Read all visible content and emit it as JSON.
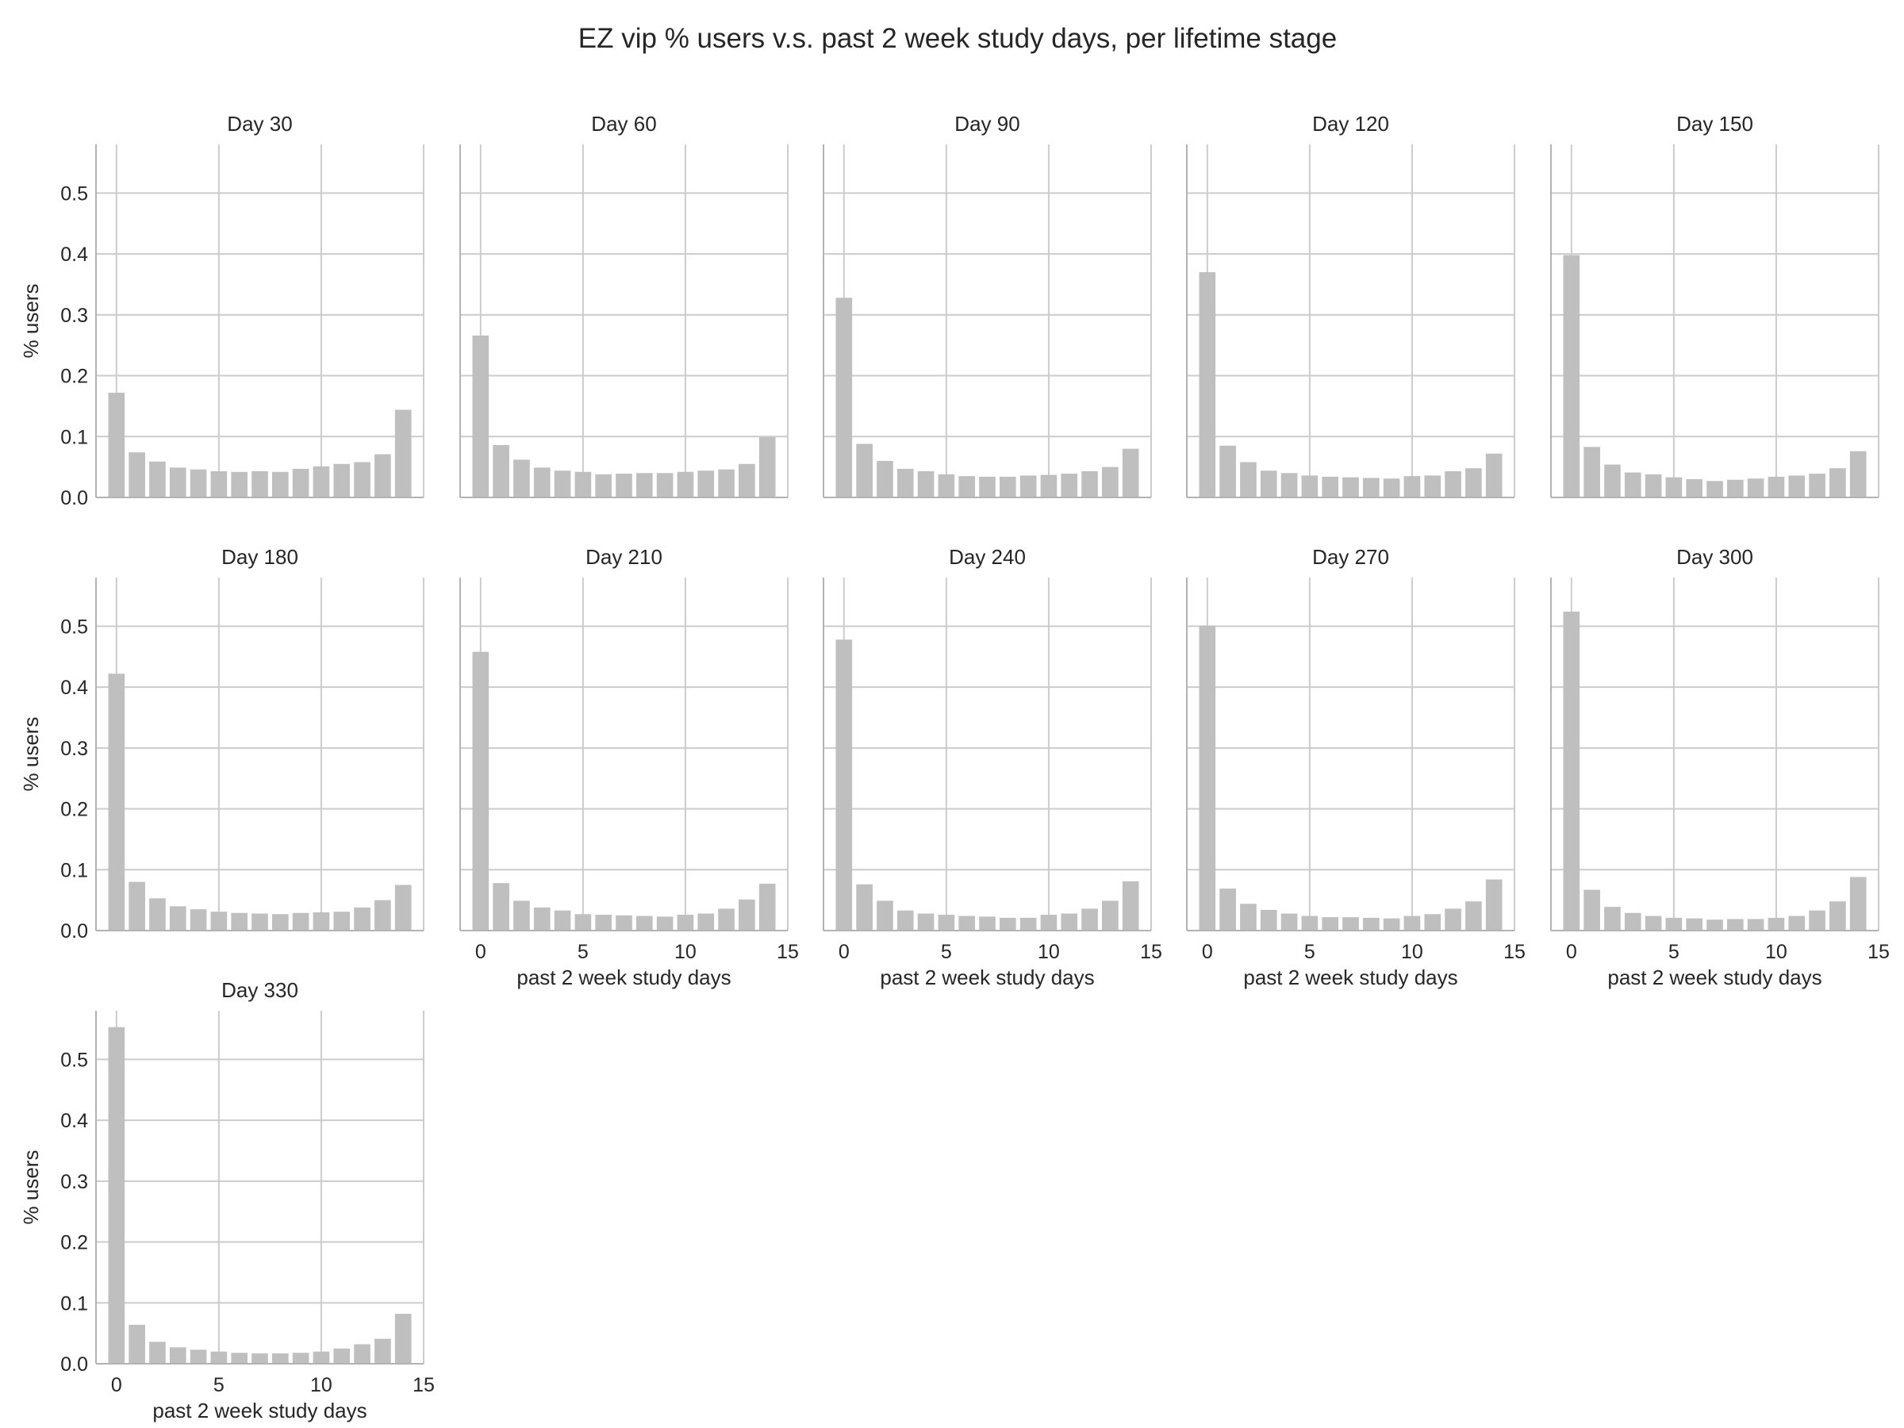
{
  "figure": {
    "suptitle": "EZ vip % users v.s. past 2 week study days, per lifetime stage",
    "bar_color": "#bfbfbf",
    "grid_color": "#cccccc",
    "spine_color": "#b3b3b3"
  },
  "chart_data": [
    {
      "type": "bar",
      "title": "Day 30",
      "xlabel": "",
      "ylabel": "% users",
      "xlim": [
        -1,
        15
      ],
      "ylim": [
        0,
        0.58
      ],
      "xticks": [],
      "yticks": [
        "0.0",
        "0.1",
        "0.2",
        "0.3",
        "0.4",
        "0.5"
      ],
      "x": [
        0,
        1,
        2,
        3,
        4,
        5,
        6,
        7,
        8,
        9,
        10,
        11,
        12,
        13,
        14
      ],
      "values": [
        0.172,
        0.074,
        0.059,
        0.049,
        0.046,
        0.043,
        0.042,
        0.043,
        0.042,
        0.047,
        0.051,
        0.055,
        0.058,
        0.071,
        0.144
      ]
    },
    {
      "type": "bar",
      "title": "Day 60",
      "xlabel": "",
      "ylabel": "",
      "xlim": [
        -1,
        15
      ],
      "ylim": [
        0,
        0.58
      ],
      "xticks": [],
      "yticks": [],
      "x": [
        0,
        1,
        2,
        3,
        4,
        5,
        6,
        7,
        8,
        9,
        10,
        11,
        12,
        13,
        14
      ],
      "values": [
        0.266,
        0.086,
        0.062,
        0.049,
        0.044,
        0.042,
        0.038,
        0.039,
        0.04,
        0.04,
        0.042,
        0.044,
        0.046,
        0.055,
        0.099
      ]
    },
    {
      "type": "bar",
      "title": "Day 90",
      "xlabel": "",
      "ylabel": "",
      "xlim": [
        -1,
        15
      ],
      "ylim": [
        0,
        0.58
      ],
      "xticks": [],
      "yticks": [],
      "x": [
        0,
        1,
        2,
        3,
        4,
        5,
        6,
        7,
        8,
        9,
        10,
        11,
        12,
        13,
        14
      ],
      "values": [
        0.328,
        0.088,
        0.06,
        0.047,
        0.043,
        0.038,
        0.035,
        0.034,
        0.034,
        0.036,
        0.037,
        0.039,
        0.043,
        0.05,
        0.08
      ]
    },
    {
      "type": "bar",
      "title": "Day 120",
      "xlabel": "",
      "ylabel": "",
      "xlim": [
        -1,
        15
      ],
      "ylim": [
        0,
        0.58
      ],
      "xticks": [],
      "yticks": [],
      "x": [
        0,
        1,
        2,
        3,
        4,
        5,
        6,
        7,
        8,
        9,
        10,
        11,
        12,
        13,
        14
      ],
      "values": [
        0.37,
        0.085,
        0.058,
        0.044,
        0.04,
        0.036,
        0.034,
        0.033,
        0.032,
        0.031,
        0.035,
        0.036,
        0.043,
        0.048,
        0.072
      ]
    },
    {
      "type": "bar",
      "title": "Day 150",
      "xlabel": "",
      "ylabel": "",
      "xlim": [
        -1,
        15
      ],
      "ylim": [
        0,
        0.58
      ],
      "xticks": [],
      "yticks": [],
      "x": [
        0,
        1,
        2,
        3,
        4,
        5,
        6,
        7,
        8,
        9,
        10,
        11,
        12,
        13,
        14
      ],
      "values": [
        0.398,
        0.083,
        0.054,
        0.041,
        0.038,
        0.033,
        0.03,
        0.027,
        0.029,
        0.031,
        0.034,
        0.036,
        0.039,
        0.048,
        0.076
      ]
    },
    {
      "type": "bar",
      "title": "Day 180",
      "xlabel": "",
      "ylabel": "% users",
      "xlim": [
        -1,
        15
      ],
      "ylim": [
        0,
        0.58
      ],
      "xticks": [],
      "yticks": [
        "0.0",
        "0.1",
        "0.2",
        "0.3",
        "0.4",
        "0.5"
      ],
      "x": [
        0,
        1,
        2,
        3,
        4,
        5,
        6,
        7,
        8,
        9,
        10,
        11,
        12,
        13,
        14
      ],
      "values": [
        0.422,
        0.08,
        0.053,
        0.04,
        0.035,
        0.031,
        0.029,
        0.028,
        0.027,
        0.029,
        0.03,
        0.031,
        0.038,
        0.05,
        0.075
      ]
    },
    {
      "type": "bar",
      "title": "Day 210",
      "xlabel": "past 2 week study days",
      "ylabel": "",
      "xlim": [
        -1,
        15
      ],
      "ylim": [
        0,
        0.58
      ],
      "xticks": [
        "0",
        "5",
        "10",
        "15"
      ],
      "yticks": [],
      "x": [
        0,
        1,
        2,
        3,
        4,
        5,
        6,
        7,
        8,
        9,
        10,
        11,
        12,
        13,
        14
      ],
      "values": [
        0.458,
        0.078,
        0.049,
        0.038,
        0.033,
        0.027,
        0.026,
        0.025,
        0.024,
        0.023,
        0.026,
        0.028,
        0.036,
        0.051,
        0.077
      ]
    },
    {
      "type": "bar",
      "title": "Day 240",
      "xlabel": "past 2 week study days",
      "ylabel": "",
      "xlim": [
        -1,
        15
      ],
      "ylim": [
        0,
        0.58
      ],
      "xticks": [
        "0",
        "5",
        "10",
        "15"
      ],
      "yticks": [],
      "x": [
        0,
        1,
        2,
        3,
        4,
        5,
        6,
        7,
        8,
        9,
        10,
        11,
        12,
        13,
        14
      ],
      "values": [
        0.478,
        0.076,
        0.049,
        0.033,
        0.028,
        0.026,
        0.024,
        0.023,
        0.021,
        0.021,
        0.026,
        0.028,
        0.036,
        0.049,
        0.081
      ]
    },
    {
      "type": "bar",
      "title": "Day 270",
      "xlabel": "past 2 week study days",
      "ylabel": "",
      "xlim": [
        -1,
        15
      ],
      "ylim": [
        0,
        0.58
      ],
      "xticks": [
        "0",
        "5",
        "10",
        "15"
      ],
      "yticks": [],
      "x": [
        0,
        1,
        2,
        3,
        4,
        5,
        6,
        7,
        8,
        9,
        10,
        11,
        12,
        13,
        14
      ],
      "values": [
        0.501,
        0.069,
        0.044,
        0.034,
        0.028,
        0.024,
        0.022,
        0.022,
        0.021,
        0.02,
        0.024,
        0.027,
        0.036,
        0.048,
        0.084
      ]
    },
    {
      "type": "bar",
      "title": "Day 300",
      "xlabel": "past 2 week study days",
      "ylabel": "",
      "xlim": [
        -1,
        15
      ],
      "ylim": [
        0,
        0.58
      ],
      "xticks": [
        "0",
        "5",
        "10",
        "15"
      ],
      "yticks": [],
      "x": [
        0,
        1,
        2,
        3,
        4,
        5,
        6,
        7,
        8,
        9,
        10,
        11,
        12,
        13,
        14
      ],
      "values": [
        0.524,
        0.067,
        0.039,
        0.029,
        0.024,
        0.021,
        0.02,
        0.018,
        0.019,
        0.019,
        0.021,
        0.024,
        0.033,
        0.048,
        0.088
      ]
    },
    {
      "type": "bar",
      "title": "Day 330",
      "xlabel": "past 2 week study days",
      "ylabel": "% users",
      "xlim": [
        -1,
        15
      ],
      "ylim": [
        0,
        0.58
      ],
      "xticks": [
        "0",
        "5",
        "10",
        "15"
      ],
      "yticks": [
        "0.0",
        "0.1",
        "0.2",
        "0.3",
        "0.4",
        "0.5"
      ],
      "x": [
        0,
        1,
        2,
        3,
        4,
        5,
        6,
        7,
        8,
        9,
        10,
        11,
        12,
        13,
        14
      ],
      "values": [
        0.553,
        0.064,
        0.036,
        0.027,
        0.023,
        0.02,
        0.018,
        0.017,
        0.017,
        0.018,
        0.02,
        0.025,
        0.032,
        0.041,
        0.082
      ]
    }
  ]
}
